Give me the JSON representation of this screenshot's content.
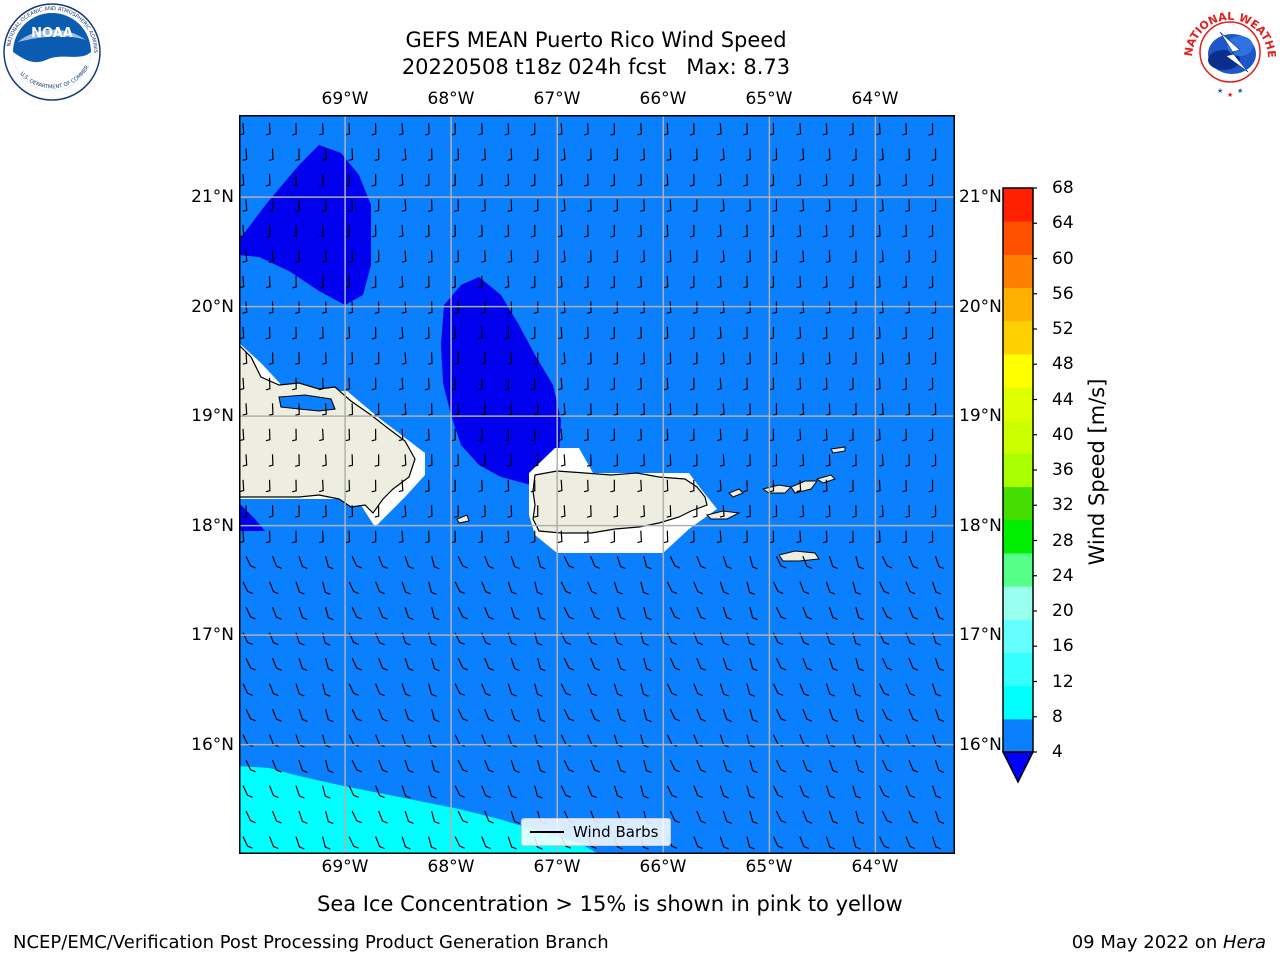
{
  "header": {
    "title_line1": "GEFS MEAN Puerto Rico Wind Speed",
    "title_line2": "20220508 t18z 024h fcst   Max: 8.73"
  },
  "logos": {
    "left": "NOAA",
    "right": "NATIONAL WEATHER SERVICE"
  },
  "map": {
    "lon_labels": [
      "69°W",
      "68°W",
      "67°W",
      "66°W",
      "65°W",
      "64°W"
    ],
    "lat_labels": [
      "21°N",
      "20°N",
      "19°N",
      "18°N",
      "17°N",
      "16°N"
    ],
    "lon_range": [
      -70.0,
      -63.25
    ],
    "lat_range": [
      15.0,
      21.75
    ],
    "gridlines": true,
    "background_color": "#0a80ff",
    "land_color": "#eeeee0"
  },
  "colorbar": {
    "label": "Wind Speed [m/s]",
    "ticks": [
      "68",
      "64",
      "60",
      "56",
      "52",
      "48",
      "44",
      "40",
      "36",
      "32",
      "28",
      "24",
      "20",
      "16",
      "12",
      "8",
      "4"
    ],
    "levels": [
      4,
      8,
      12,
      16,
      20,
      24,
      28,
      32,
      36,
      40,
      44,
      48,
      52,
      56,
      60,
      64,
      68
    ],
    "colors": [
      "#0a80ff",
      "#00ffff",
      "#38ffff",
      "#66ffff",
      "#99ffee",
      "#55ff88",
      "#00ee00",
      "#44dd00",
      "#aaff00",
      "#ccff00",
      "#ddff00",
      "#ffff00",
      "#ffd000",
      "#ffb000",
      "#ff8000",
      "#ff5000",
      "#ff2000"
    ],
    "extend_color": "#0000ff"
  },
  "legend": {
    "label": "Wind Barbs"
  },
  "caption": "Sea Ice Concentration > 15% is shown in pink to yellow",
  "footer": {
    "left": "NCEP/EMC/Verification Post Processing Product Generation Branch",
    "date": "09 May 2022 on ",
    "machine": "Hera"
  }
}
